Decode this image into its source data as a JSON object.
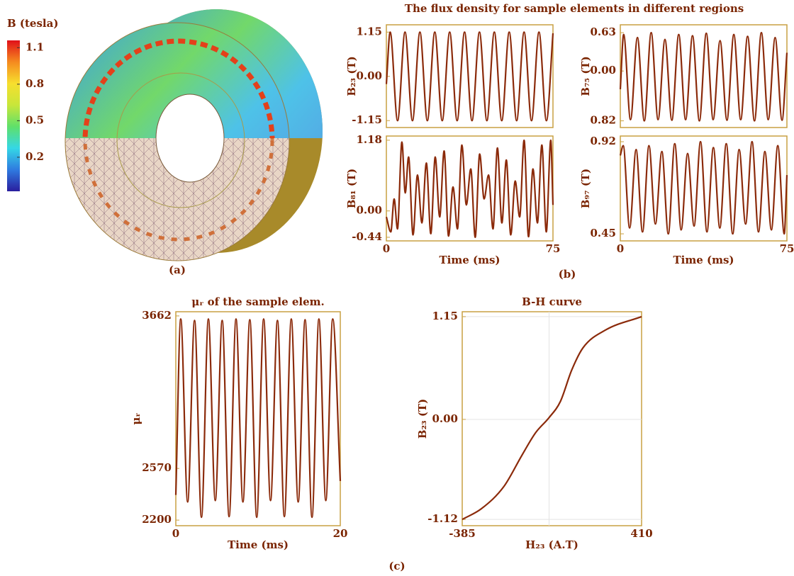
{
  "figure_title": "The flux density for sample elements in different regions",
  "panel_labels": [
    "(a)",
    "(b)",
    "(c)"
  ],
  "chart_data": [
    {
      "type": "colorbar",
      "title": "B (tesla)",
      "ylim": [
        -0.08,
        1.16
      ],
      "yticks": [
        0.2,
        0.5,
        0.8,
        1.1
      ],
      "colors": [
        "#2a1e9e",
        "#2f7be0",
        "#35d7e6",
        "#5fe06a",
        "#c8e63a",
        "#f7df2e",
        "#f58a1f",
        "#e0101a"
      ]
    },
    {
      "type": "line",
      "ylabel": "B₂₃ (T)",
      "color": "#8b2a0a",
      "xlim": [
        0,
        75
      ],
      "ylim": [
        -1.33,
        1.34
      ],
      "yticks": [
        -1.15,
        {
          "value": 0,
          "label": "0.00"
        },
        1.15
      ],
      "x": [
        0,
        1.7,
        5.05,
        8.4,
        11.75,
        15.1,
        18.45,
        21.8,
        25.15,
        28.5,
        31.85,
        35.2,
        38.55,
        41.9,
        45.25,
        48.6,
        51.95,
        55.3,
        58.65,
        62,
        65.35,
        68.7,
        72.05,
        75
      ],
      "values": [
        -0.2,
        1.15,
        -1.15,
        1.15,
        -1.15,
        1.15,
        -1.15,
        1.15,
        -1.15,
        1.15,
        -1.15,
        1.15,
        -1.15,
        1.15,
        -1.15,
        1.15,
        -1.15,
        1.15,
        -1.15,
        1.15,
        -1.15,
        1.15,
        -1.15,
        1.12
      ]
    },
    {
      "type": "line",
      "ylabel": "B₇₅ (T)",
      "color": "#8b2a0a",
      "xlim": [
        0,
        75
      ],
      "ylim": [
        -0.93,
        0.76
      ],
      "yticks": [
        {
          "value": -0.82,
          "label": "0.82"
        },
        {
          "value": 0,
          "label": "0.00"
        },
        0.63
      ],
      "x": [
        0,
        1.5,
        4.6,
        7.7,
        10.8,
        13.9,
        17,
        20.1,
        23.2,
        26.3,
        29.4,
        32.5,
        35.6,
        38.7,
        41.8,
        44.9,
        48,
        51.1,
        54.2,
        57.3,
        60.4,
        63.5,
        66.6,
        69.7,
        72.8,
        75
      ],
      "values": [
        -0.3,
        0.6,
        -0.8,
        0.55,
        -0.82,
        0.63,
        -0.8,
        0.52,
        -0.81,
        0.6,
        -0.8,
        0.58,
        -0.82,
        0.62,
        -0.8,
        0.5,
        -0.81,
        0.6,
        -0.8,
        0.57,
        -0.82,
        0.63,
        -0.8,
        0.55,
        -0.81,
        0.3
      ]
    },
    {
      "type": "line",
      "ylabel": "B₈₁ (T)",
      "xlabel": "Time (ms)",
      "color": "#8b2a0a",
      "xlim": [
        0,
        75
      ],
      "xticks": [
        0,
        75
      ],
      "ylim": [
        -0.5,
        1.25
      ],
      "yticks": [
        -0.44,
        {
          "value": 0,
          "label": "0.00"
        },
        1.18
      ],
      "x": [
        0,
        2,
        3.5,
        5,
        7,
        8.5,
        10,
        12,
        14,
        16,
        18,
        20,
        22,
        24,
        26,
        28,
        30,
        32,
        34,
        36,
        38,
        40,
        42,
        44,
        46,
        48,
        50,
        52,
        54,
        56,
        58,
        60,
        62,
        64,
        66,
        68,
        70,
        72,
        74,
        75
      ],
      "values": [
        -0.1,
        -0.35,
        0.2,
        -0.3,
        1.15,
        0.3,
        0.9,
        -0.4,
        0.6,
        -0.2,
        0.8,
        -0.38,
        0.9,
        -0.1,
        1.0,
        -0.42,
        0.4,
        -0.3,
        1.1,
        0.1,
        0.7,
        -0.44,
        0.95,
        0.2,
        0.6,
        -0.3,
        1.05,
        -0.2,
        0.85,
        -0.4,
        0.5,
        -0.1,
        1.18,
        -0.43,
        0.7,
        -0.2,
        1.1,
        -0.35,
        1.18,
        0.1
      ]
    },
    {
      "type": "line",
      "ylabel": "B₉₇ (T)",
      "xlabel": "Time (ms)",
      "color": "#8b2a0a",
      "xlim": [
        0,
        75
      ],
      "xticks": [
        0,
        75
      ],
      "ylim": [
        0.414,
        0.949
      ],
      "yticks": [
        0.45,
        0.92
      ],
      "x": [
        0,
        1.3,
        4.2,
        7.1,
        10,
        12.9,
        15.8,
        18.7,
        21.6,
        24.5,
        27.4,
        30.3,
        33.2,
        36.1,
        39,
        41.9,
        44.8,
        47.7,
        50.6,
        53.5,
        56.4,
        59.3,
        62.2,
        65.1,
        68,
        70.9,
        73.8,
        75
      ],
      "values": [
        0.85,
        0.9,
        0.48,
        0.88,
        0.46,
        0.9,
        0.5,
        0.87,
        0.45,
        0.91,
        0.47,
        0.86,
        0.49,
        0.92,
        0.46,
        0.89,
        0.48,
        0.91,
        0.45,
        0.88,
        0.5,
        0.92,
        0.46,
        0.87,
        0.47,
        0.9,
        0.45,
        0.75
      ]
    },
    {
      "type": "line",
      "title": "μᵣ of the sample elem.",
      "ylabel": "μᵣ",
      "xlabel": "Time (ms)",
      "color": "#8b2a0a",
      "xlim": [
        0,
        20
      ],
      "xticks": [
        0,
        20
      ],
      "ylim": [
        2160,
        3692
      ],
      "yticks": [
        2200,
        2570,
        3662
      ],
      "x": [
        0,
        0.6,
        1.44,
        2.28,
        3.12,
        3.96,
        4.8,
        5.64,
        6.48,
        7.32,
        8.16,
        9,
        9.84,
        10.68,
        11.52,
        12.36,
        13.2,
        14.04,
        14.88,
        15.72,
        16.56,
        17.4,
        18.24,
        19.08,
        20
      ],
      "values": [
        2380,
        3640,
        2330,
        3630,
        2220,
        3640,
        2340,
        3630,
        2225,
        3640,
        2330,
        3635,
        2220,
        3640,
        2340,
        3630,
        2225,
        3640,
        2330,
        3635,
        2220,
        3640,
        2340,
        3640,
        2480
      ]
    },
    {
      "type": "line",
      "title": "B-H curve",
      "ylabel": "B₂₃ (T)",
      "xlabel": "H₂₃ (A.T)",
      "color": "#8b2a0a",
      "grid": true,
      "xlim": [
        -385,
        410
      ],
      "xticks": [
        -385,
        410
      ],
      "ylim": [
        -1.19,
        1.205
      ],
      "yticks": [
        -1.12,
        {
          "value": 0,
          "label": "0.00"
        },
        1.15
      ],
      "x": [
        -385,
        -300,
        -200,
        -120,
        -60,
        0,
        50,
        100,
        150,
        250,
        410
      ],
      "values": [
        -1.12,
        -1.0,
        -0.75,
        -0.4,
        -0.15,
        0.02,
        0.2,
        0.55,
        0.8,
        1.0,
        1.15
      ]
    }
  ]
}
